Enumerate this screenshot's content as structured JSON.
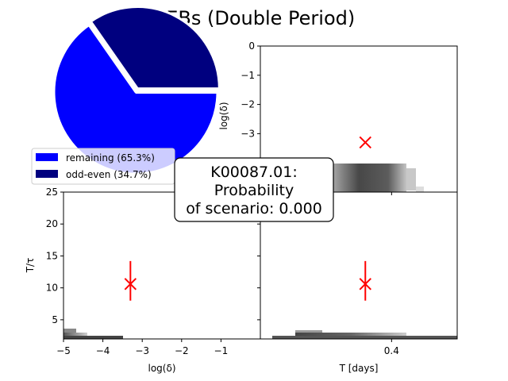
{
  "title": "BEBs (Double Period)",
  "annotation": [
    "K00087.01:",
    "Probability",
    "of scenario: 0.000"
  ],
  "colors": {
    "remaining": "#0000ff",
    "odd_even": "#00007f",
    "marker": "#ff0000"
  },
  "chart_data": [
    {
      "type": "pie",
      "slices": [
        {
          "label": "remaining (65.3%)",
          "value": 65.3,
          "color": "#0000ff"
        },
        {
          "label": "odd-even (34.7%)",
          "value": 34.7,
          "color": "#00007f",
          "exploded": true
        }
      ],
      "legend_placement": "lower-left"
    },
    {
      "type": "heatmap",
      "panel": "top-right",
      "xlabel": "",
      "ylabel": "log(δ)",
      "ylim": [
        -5,
        0
      ],
      "yticks": [
        "0",
        "−1",
        "−2",
        "−3"
      ],
      "marker": {
        "x": 0.36,
        "y": -3.3
      }
    },
    {
      "type": "heatmap",
      "panel": "bottom-left",
      "xlabel": "log(δ)",
      "ylabel": "T/τ",
      "xlim": [
        -5,
        0
      ],
      "ylim": [
        2,
        25
      ],
      "xticks": [
        "−5",
        "−4",
        "−3",
        "−2",
        "−1"
      ],
      "yticks": [
        "25",
        "20",
        "15",
        "10",
        "5"
      ],
      "marker": {
        "x": -3.3,
        "y": 10.6,
        "yerr_low": 2.6,
        "yerr_high": 3.6
      }
    },
    {
      "type": "heatmap",
      "panel": "bottom-right",
      "xlabel": "T [days]",
      "ylabel": "",
      "xlim": [
        0.2,
        0.5
      ],
      "ylim": [
        2,
        25
      ],
      "xticks": [
        "0.4"
      ],
      "marker": {
        "x": 0.36,
        "y": 10.6,
        "yerr_low": 2.6,
        "yerr_high": 3.6
      }
    }
  ]
}
